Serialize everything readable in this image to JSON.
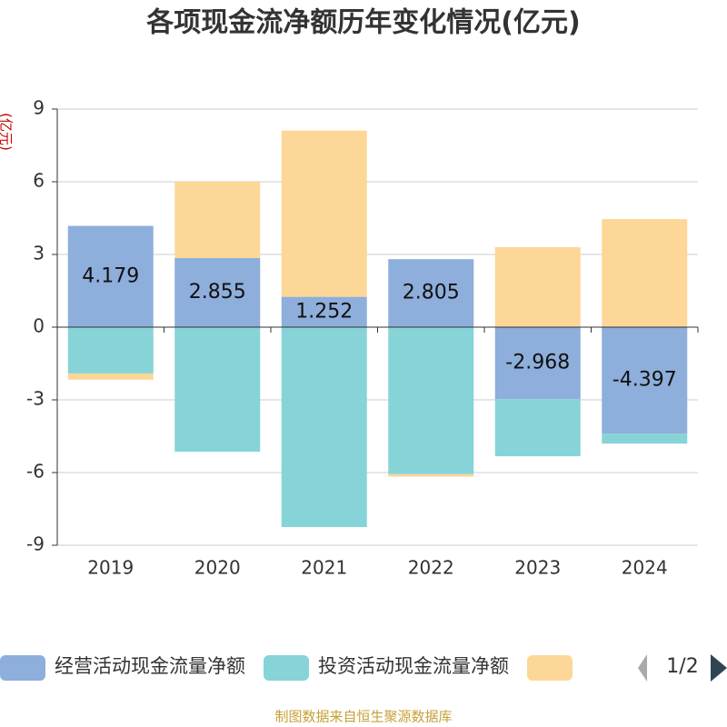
{
  "chart_data": {
    "type": "bar",
    "title": "各项现金流净额历年变化情况(亿元)",
    "y_label": "(亿元)",
    "categories": [
      "2019",
      "2020",
      "2021",
      "2022",
      "2023",
      "2024"
    ],
    "series": [
      {
        "name": "经营活动现金流量净额",
        "color": "#8eaedb",
        "values": [
          4.179,
          2.855,
          1.252,
          2.805,
          -2.968,
          -4.397
        ]
      },
      {
        "name": "投资活动现金流量净额",
        "color": "#86d4d8",
        "values": [
          -1.91,
          -5.14,
          -8.25,
          -6.07,
          -2.36,
          -0.41
        ]
      },
      {
        "color": "#fdd798",
        "values": [
          -0.26,
          3.15,
          6.86,
          -0.1,
          3.3,
          4.46
        ]
      }
    ],
    "ylim": [
      -9,
      9
    ],
    "yticks": [
      -9,
      -6,
      -3,
      0,
      3,
      6,
      9
    ],
    "grid": true,
    "stacked": true,
    "legend_page": "1/2",
    "source": "制图数据来自恒生聚源数据库"
  }
}
